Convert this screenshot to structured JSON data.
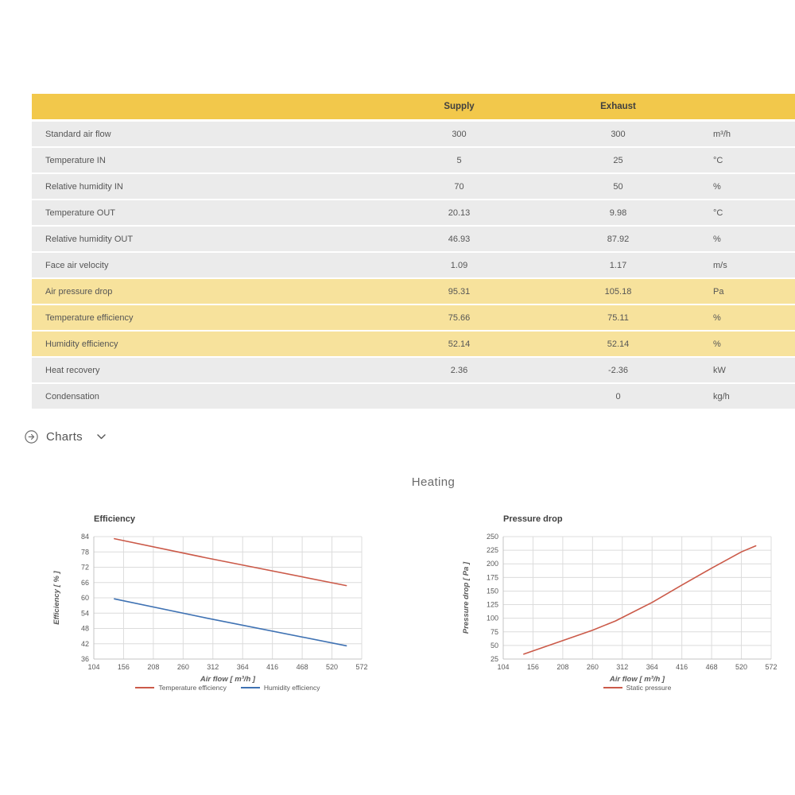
{
  "table": {
    "header": {
      "label": "",
      "supply": "Supply",
      "exhaust": "Exhaust",
      "unit": ""
    },
    "colors": {
      "header_bg": "#f2c84b",
      "row_bg": "#ebebeb",
      "highlight_bg": "#f7e29c"
    },
    "rows": [
      {
        "label": "Standard air flow",
        "supply": "300",
        "exhaust": "300",
        "unit": "m³/h",
        "highlight": false
      },
      {
        "label": "Temperature IN",
        "supply": "5",
        "exhaust": "25",
        "unit": "°C",
        "highlight": false
      },
      {
        "label": "Relative humidity IN",
        "supply": "70",
        "exhaust": "50",
        "unit": "%",
        "highlight": false
      },
      {
        "label": "Temperature OUT",
        "supply": "20.13",
        "exhaust": "9.98",
        "unit": "°C",
        "highlight": false
      },
      {
        "label": "Relative humidity OUT",
        "supply": "46.93",
        "exhaust": "87.92",
        "unit": "%",
        "highlight": false
      },
      {
        "label": "Face air velocity",
        "supply": "1.09",
        "exhaust": "1.17",
        "unit": "m/s",
        "highlight": false
      },
      {
        "label": "Air pressure drop",
        "supply": "95.31",
        "exhaust": "105.18",
        "unit": "Pa",
        "highlight": true
      },
      {
        "label": "Temperature efficiency",
        "supply": "75.66",
        "exhaust": "75.11",
        "unit": "%",
        "highlight": true
      },
      {
        "label": "Humidity efficiency",
        "supply": "52.14",
        "exhaust": "52.14",
        "unit": "%",
        "highlight": true
      },
      {
        "label": "Heat recovery",
        "supply": "2.36",
        "exhaust": "-2.36",
        "unit": "kW",
        "highlight": false
      },
      {
        "label": "Condensation",
        "supply": "",
        "exhaust": "0",
        "unit": "kg/h",
        "highlight": false
      }
    ]
  },
  "charts_section": {
    "label": "Charts"
  },
  "heating_title": "Heating",
  "chart_data": [
    {
      "type": "line",
      "title": "Efficiency",
      "xlabel": "Air flow [ m³/h ]",
      "ylabel": "Efficiency [ % ]",
      "xlim": [
        104,
        572
      ],
      "ylim": [
        36,
        84
      ],
      "xticks": [
        104,
        156,
        208,
        260,
        312,
        364,
        416,
        468,
        520,
        572
      ],
      "yticks": [
        36,
        42,
        48,
        54,
        60,
        66,
        72,
        78,
        84
      ],
      "grid": true,
      "legend_position": "bottom",
      "series": [
        {
          "name": "Temperature efficiency",
          "color": "#cb5a49",
          "points": [
            [
              140,
              83.2
            ],
            [
              300,
              75.7
            ],
            [
              545,
              64.8
            ]
          ]
        },
        {
          "name": "Humidity efficiency",
          "color": "#3f72b3",
          "points": [
            [
              140,
              59.6
            ],
            [
              300,
              52.1
            ],
            [
              545,
              41.2
            ]
          ]
        }
      ]
    },
    {
      "type": "line",
      "title": "Pressure drop",
      "xlabel": "Air flow [ m³/h ]",
      "ylabel": "Pressure drop [ Pa ]",
      "xlim": [
        104,
        572
      ],
      "ylim": [
        25,
        250
      ],
      "xticks": [
        104,
        156,
        208,
        260,
        312,
        364,
        416,
        468,
        520,
        572
      ],
      "yticks": [
        25,
        50,
        75,
        100,
        125,
        150,
        175,
        200,
        225,
        250
      ],
      "grid": true,
      "legend_position": "bottom",
      "series": [
        {
          "name": "Static pressure",
          "color": "#cb5a49",
          "points": [
            [
              140,
              34
            ],
            [
              208,
              59
            ],
            [
              260,
              78
            ],
            [
              300,
              95
            ],
            [
              364,
              129
            ],
            [
              416,
              161
            ],
            [
              468,
              192
            ],
            [
              520,
              222
            ],
            [
              545,
              233
            ]
          ]
        }
      ]
    }
  ]
}
